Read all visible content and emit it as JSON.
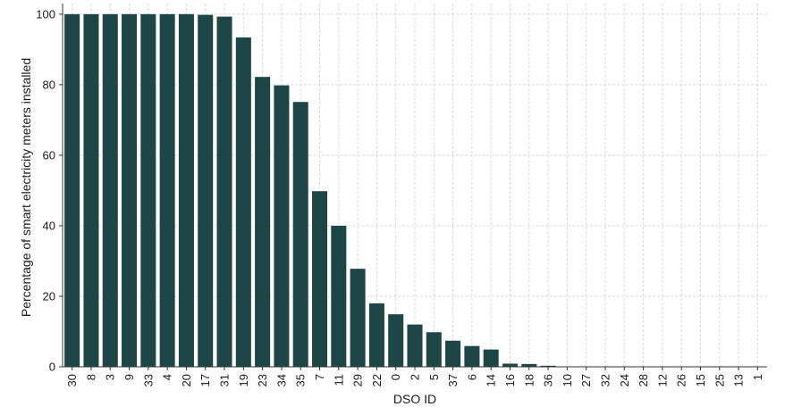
{
  "chart_data": {
    "type": "bar",
    "xlabel": "DSO ID",
    "ylabel": "Percentage of smart electricity meters installed",
    "ylim": [
      0,
      103
    ],
    "yticks": [
      0,
      20,
      40,
      60,
      80,
      100
    ],
    "grid": true,
    "bar_color": "#1e4646",
    "categories": [
      "30",
      "8",
      "3",
      "9",
      "33",
      "4",
      "20",
      "17",
      "31",
      "19",
      "23",
      "34",
      "35",
      "7",
      "11",
      "29",
      "22",
      "0",
      "2",
      "5",
      "37",
      "6",
      "14",
      "16",
      "18",
      "36",
      "10",
      "27",
      "32",
      "24",
      "28",
      "12",
      "26",
      "15",
      "25",
      "13",
      "1"
    ],
    "values": [
      100,
      100,
      100,
      100,
      100,
      100,
      100,
      99.8,
      99.3,
      93.4,
      82.2,
      79.8,
      75.1,
      49.8,
      40,
      27.8,
      18,
      14.9,
      12,
      9.8,
      7.4,
      5.9,
      4.9,
      0.9,
      0.8,
      0.3,
      0,
      0,
      0,
      0,
      0,
      0,
      0,
      0,
      0,
      0,
      0
    ]
  }
}
